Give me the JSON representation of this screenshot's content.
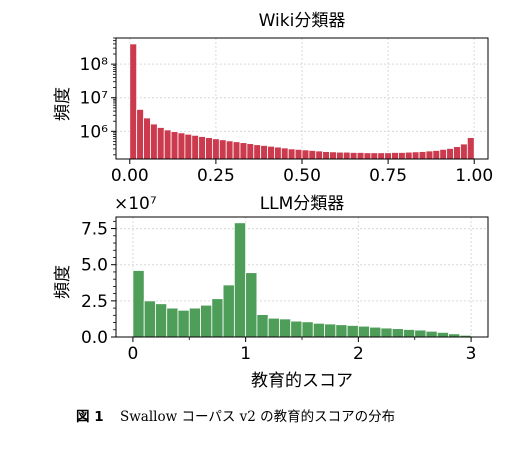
{
  "chart_data": [
    {
      "type": "bar",
      "title": "Wiki分類器",
      "xlabel": "",
      "ylabel": "頻度",
      "yscale": "log",
      "xlim": [
        -0.04,
        1.04
      ],
      "ylim": [
        150000,
        600000000
      ],
      "x_tick_labels": [
        "0.00",
        "0.25",
        "0.50",
        "0.75",
        "1.00"
      ],
      "x_tick_values": [
        0,
        0.25,
        0.5,
        0.75,
        1.0
      ],
      "y_tick_labels": [
        "10⁶",
        "10⁷",
        "10⁸"
      ],
      "y_tick_values": [
        1000000,
        10000000,
        100000000
      ],
      "grid": true,
      "color": "#cc3a4e",
      "bin_start": 0,
      "bin_width": 0.02,
      "values": [
        400000000,
        4500000,
        2500000,
        1650000,
        1300000,
        1100000,
        980000,
        900000,
        820000,
        760000,
        700000,
        650000,
        600000,
        560000,
        520000,
        490000,
        460000,
        430000,
        400000,
        380000,
        360000,
        340000,
        320000,
        300000,
        290000,
        280000,
        270000,
        260000,
        250000,
        245000,
        240000,
        240000,
        235000,
        235000,
        230000,
        230000,
        230000,
        230000,
        235000,
        235000,
        240000,
        245000,
        250000,
        260000,
        270000,
        290000,
        310000,
        350000,
        420000,
        650000
      ]
    },
    {
      "type": "bar",
      "title": "LLM分類器",
      "xlabel": "教育的スコア",
      "ylabel": "頻度",
      "offset_label": "×10⁷",
      "xlim": [
        -0.15,
        3.15
      ],
      "ylim": [
        0,
        8.3
      ],
      "x_tick_labels": [
        "0",
        "1",
        "2",
        "3"
      ],
      "x_tick_values": [
        0,
        1,
        2,
        3
      ],
      "y_tick_labels": [
        "0.0",
        "2.5",
        "5.0",
        "7.5"
      ],
      "y_tick_values": [
        0,
        2.5,
        5.0,
        7.5
      ],
      "grid": true,
      "color": "#4e9e5a",
      "bin_start": 0,
      "bin_width": 0.1,
      "values": [
        4.6,
        2.5,
        2.3,
        2.0,
        1.85,
        2.0,
        2.2,
        2.65,
        3.6,
        7.9,
        4.45,
        1.55,
        1.3,
        1.25,
        1.1,
        1.05,
        0.95,
        0.9,
        0.85,
        0.8,
        0.75,
        0.68,
        0.62,
        0.58,
        0.52,
        0.48,
        0.4,
        0.32,
        0.22,
        0.12,
        0.05
      ]
    }
  ],
  "caption": {
    "label": "図 1",
    "text": "Swallow コーパス v2 の教育的スコアの分布"
  }
}
